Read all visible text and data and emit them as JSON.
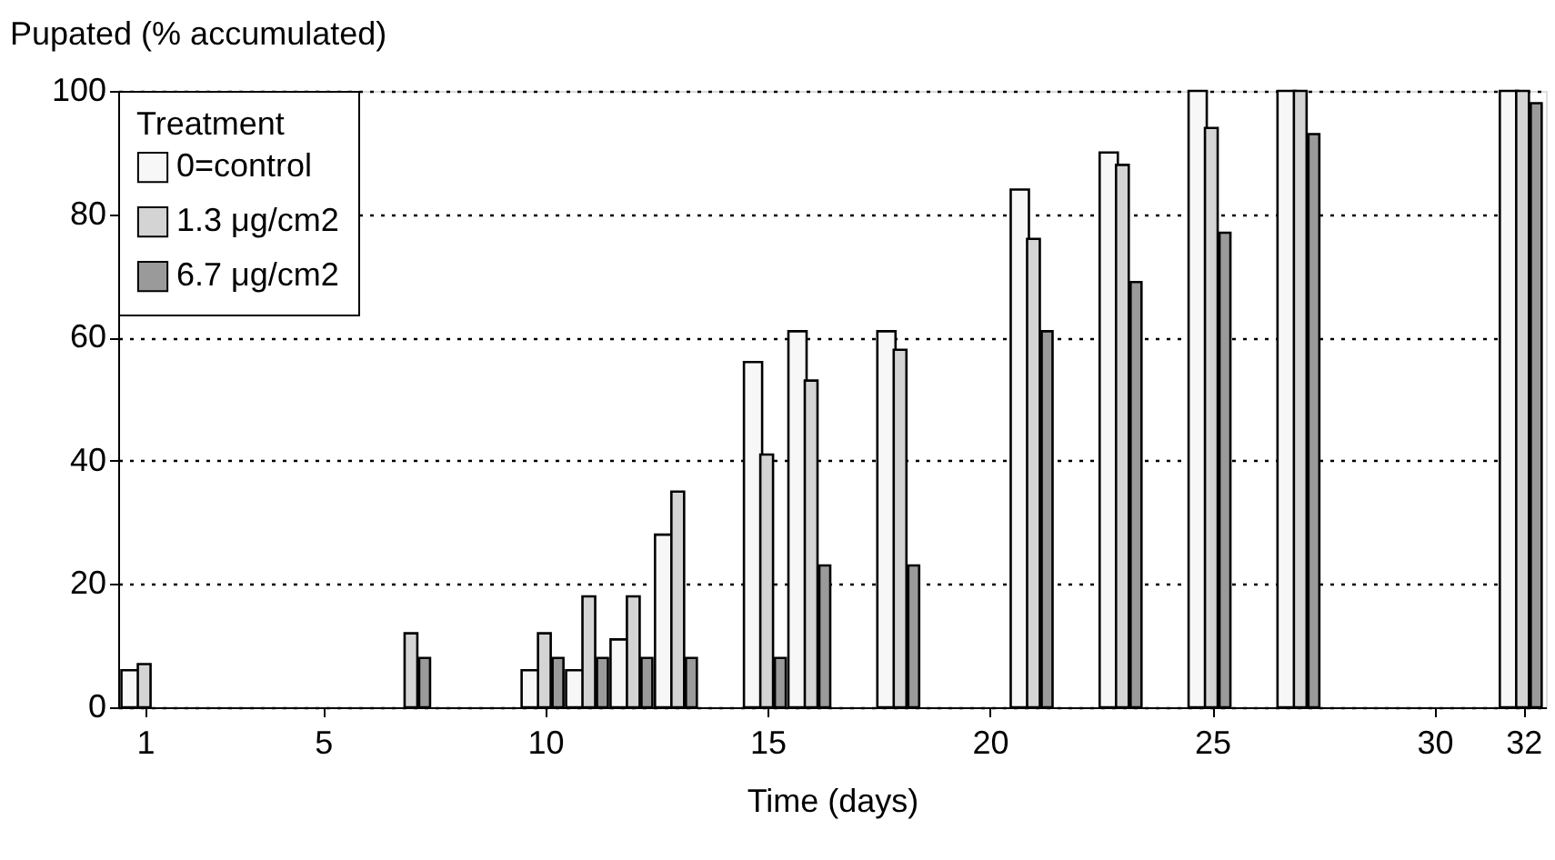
{
  "chart_data": {
    "type": "bar",
    "xlabel": "Time (days)",
    "ylabel": "Pupated (% accumulated)",
    "legend_title": "Treatment",
    "legend": "top left",
    "grid": "y",
    "x": [
      1,
      7,
      10,
      11,
      12,
      13,
      15,
      16,
      18,
      21,
      23,
      25,
      27,
      32
    ],
    "xlim": [
      0.6,
      32.3
    ],
    "xticks": [
      1,
      5,
      10,
      15,
      20,
      25,
      30,
      32
    ],
    "ylim": [
      0,
      100
    ],
    "yticks": [
      0,
      20,
      40,
      60,
      80,
      100
    ],
    "series": [
      {
        "name": "0=control",
        "color": "#f7f7f7",
        "values": [
          6,
          null,
          6,
          6,
          11,
          28,
          56,
          61,
          61,
          84,
          90,
          100,
          100,
          100
        ]
      },
      {
        "name": "1.3 μg/cm2",
        "color": "#d4d4d4",
        "values": [
          7,
          12,
          12,
          18,
          18,
          35,
          41,
          53,
          58,
          76,
          88,
          94,
          100,
          100
        ]
      },
      {
        "name": "6.7 μg/cm2",
        "color": "#9a9a9a",
        "values": [
          null,
          8,
          8,
          8,
          8,
          8,
          8,
          23,
          23,
          61,
          69,
          77,
          93,
          98
        ]
      }
    ]
  }
}
